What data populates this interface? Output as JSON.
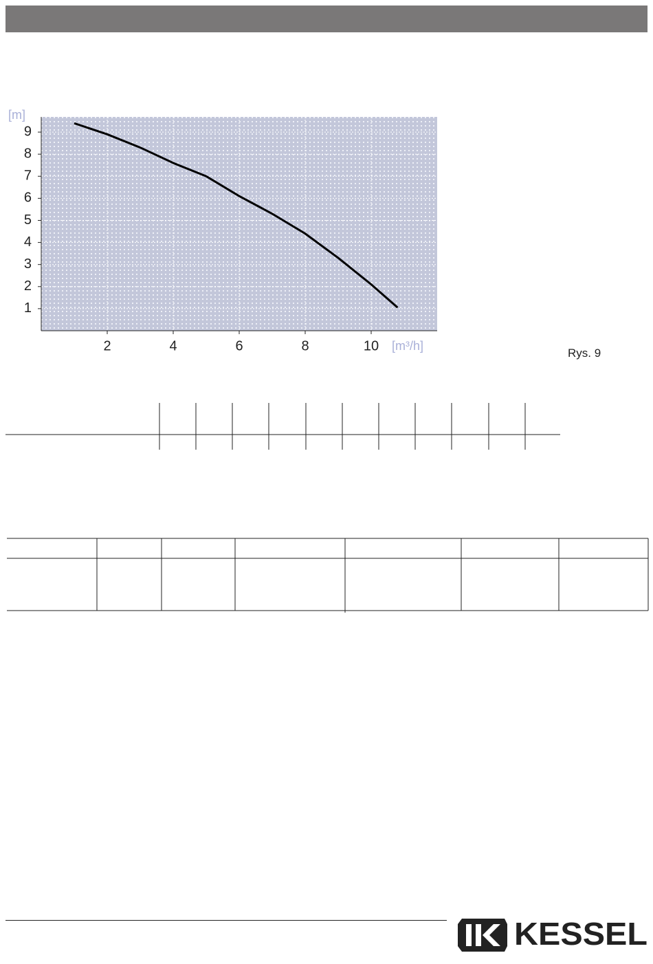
{
  "chart_data": {
    "type": "line",
    "y_label": "[m]",
    "x_label": "[m³/h]",
    "x": [
      1,
      2,
      3,
      4,
      5,
      6,
      7,
      8,
      9,
      10,
      10.8
    ],
    "values": [
      9.4,
      8.9,
      8.3,
      7.6,
      7.0,
      6.1,
      5.3,
      4.4,
      3.3,
      2.1,
      1.05
    ],
    "color": "#000000",
    "xlim": [
      0,
      12
    ],
    "ylim": [
      0,
      10
    ],
    "xticks": [
      2,
      4,
      6,
      8,
      10
    ],
    "yticks": [
      1,
      2,
      3,
      4,
      5,
      6,
      7,
      8,
      9
    ],
    "grid": true
  },
  "figure_label": "Rys. 9",
  "logo": "KESSEL"
}
